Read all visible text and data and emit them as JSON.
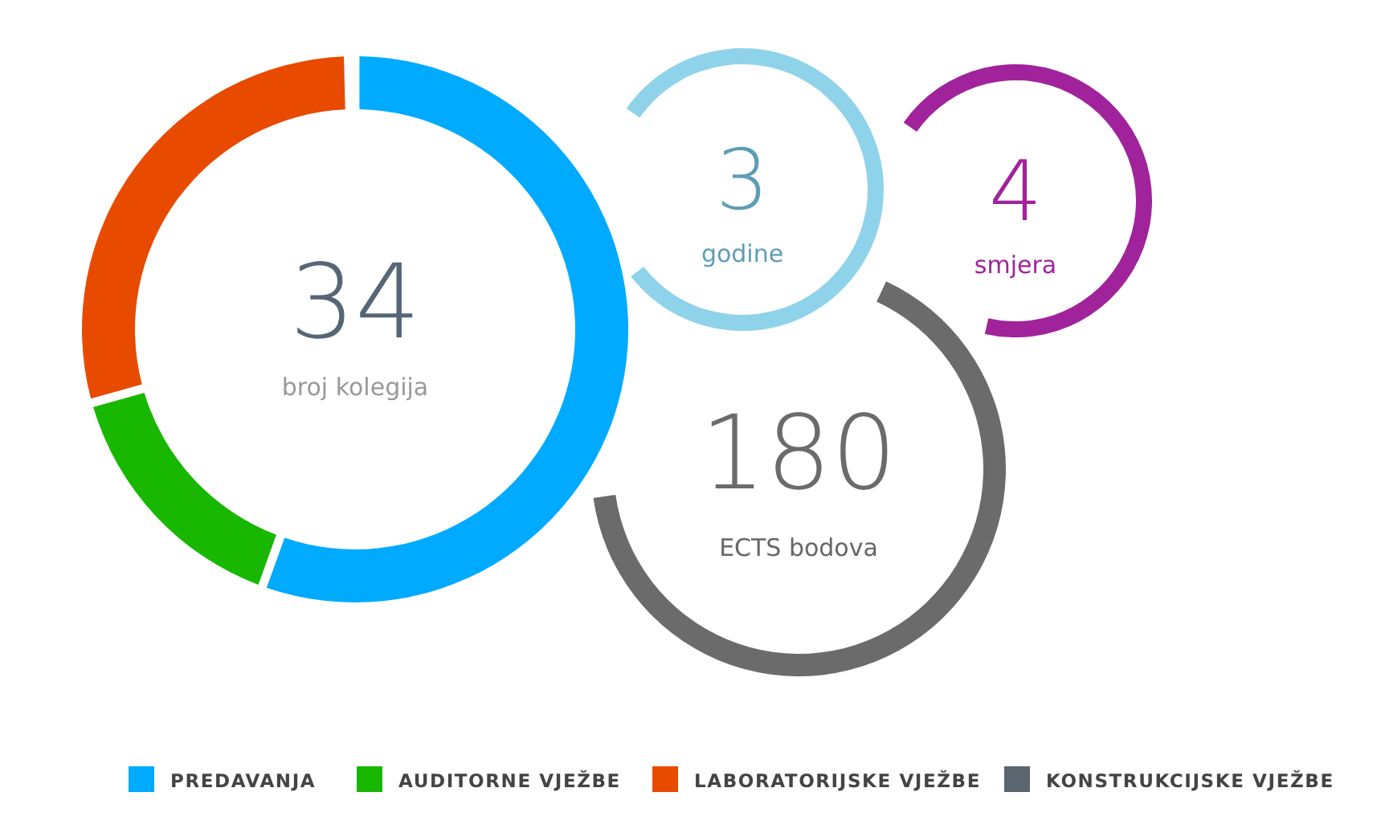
{
  "chart_data": {
    "type": "donut",
    "categories": [
      "PREDAVANJA",
      "AUDITORNE VJEŽBE",
      "LABORATORIJSKE VJEŽBE",
      "KONSTRUKCIJSKE VJEŽBE"
    ],
    "values": [
      56,
      15,
      29,
      0
    ],
    "colors": [
      "#00aaff",
      "#18b800",
      "#e84a00",
      "#5a6570"
    ],
    "legend": "bottom",
    "annotations": [
      "34",
      "broj kolegija",
      "3",
      "godine",
      "4",
      "smjera",
      "180",
      "ECTS bodova"
    ]
  }
}
